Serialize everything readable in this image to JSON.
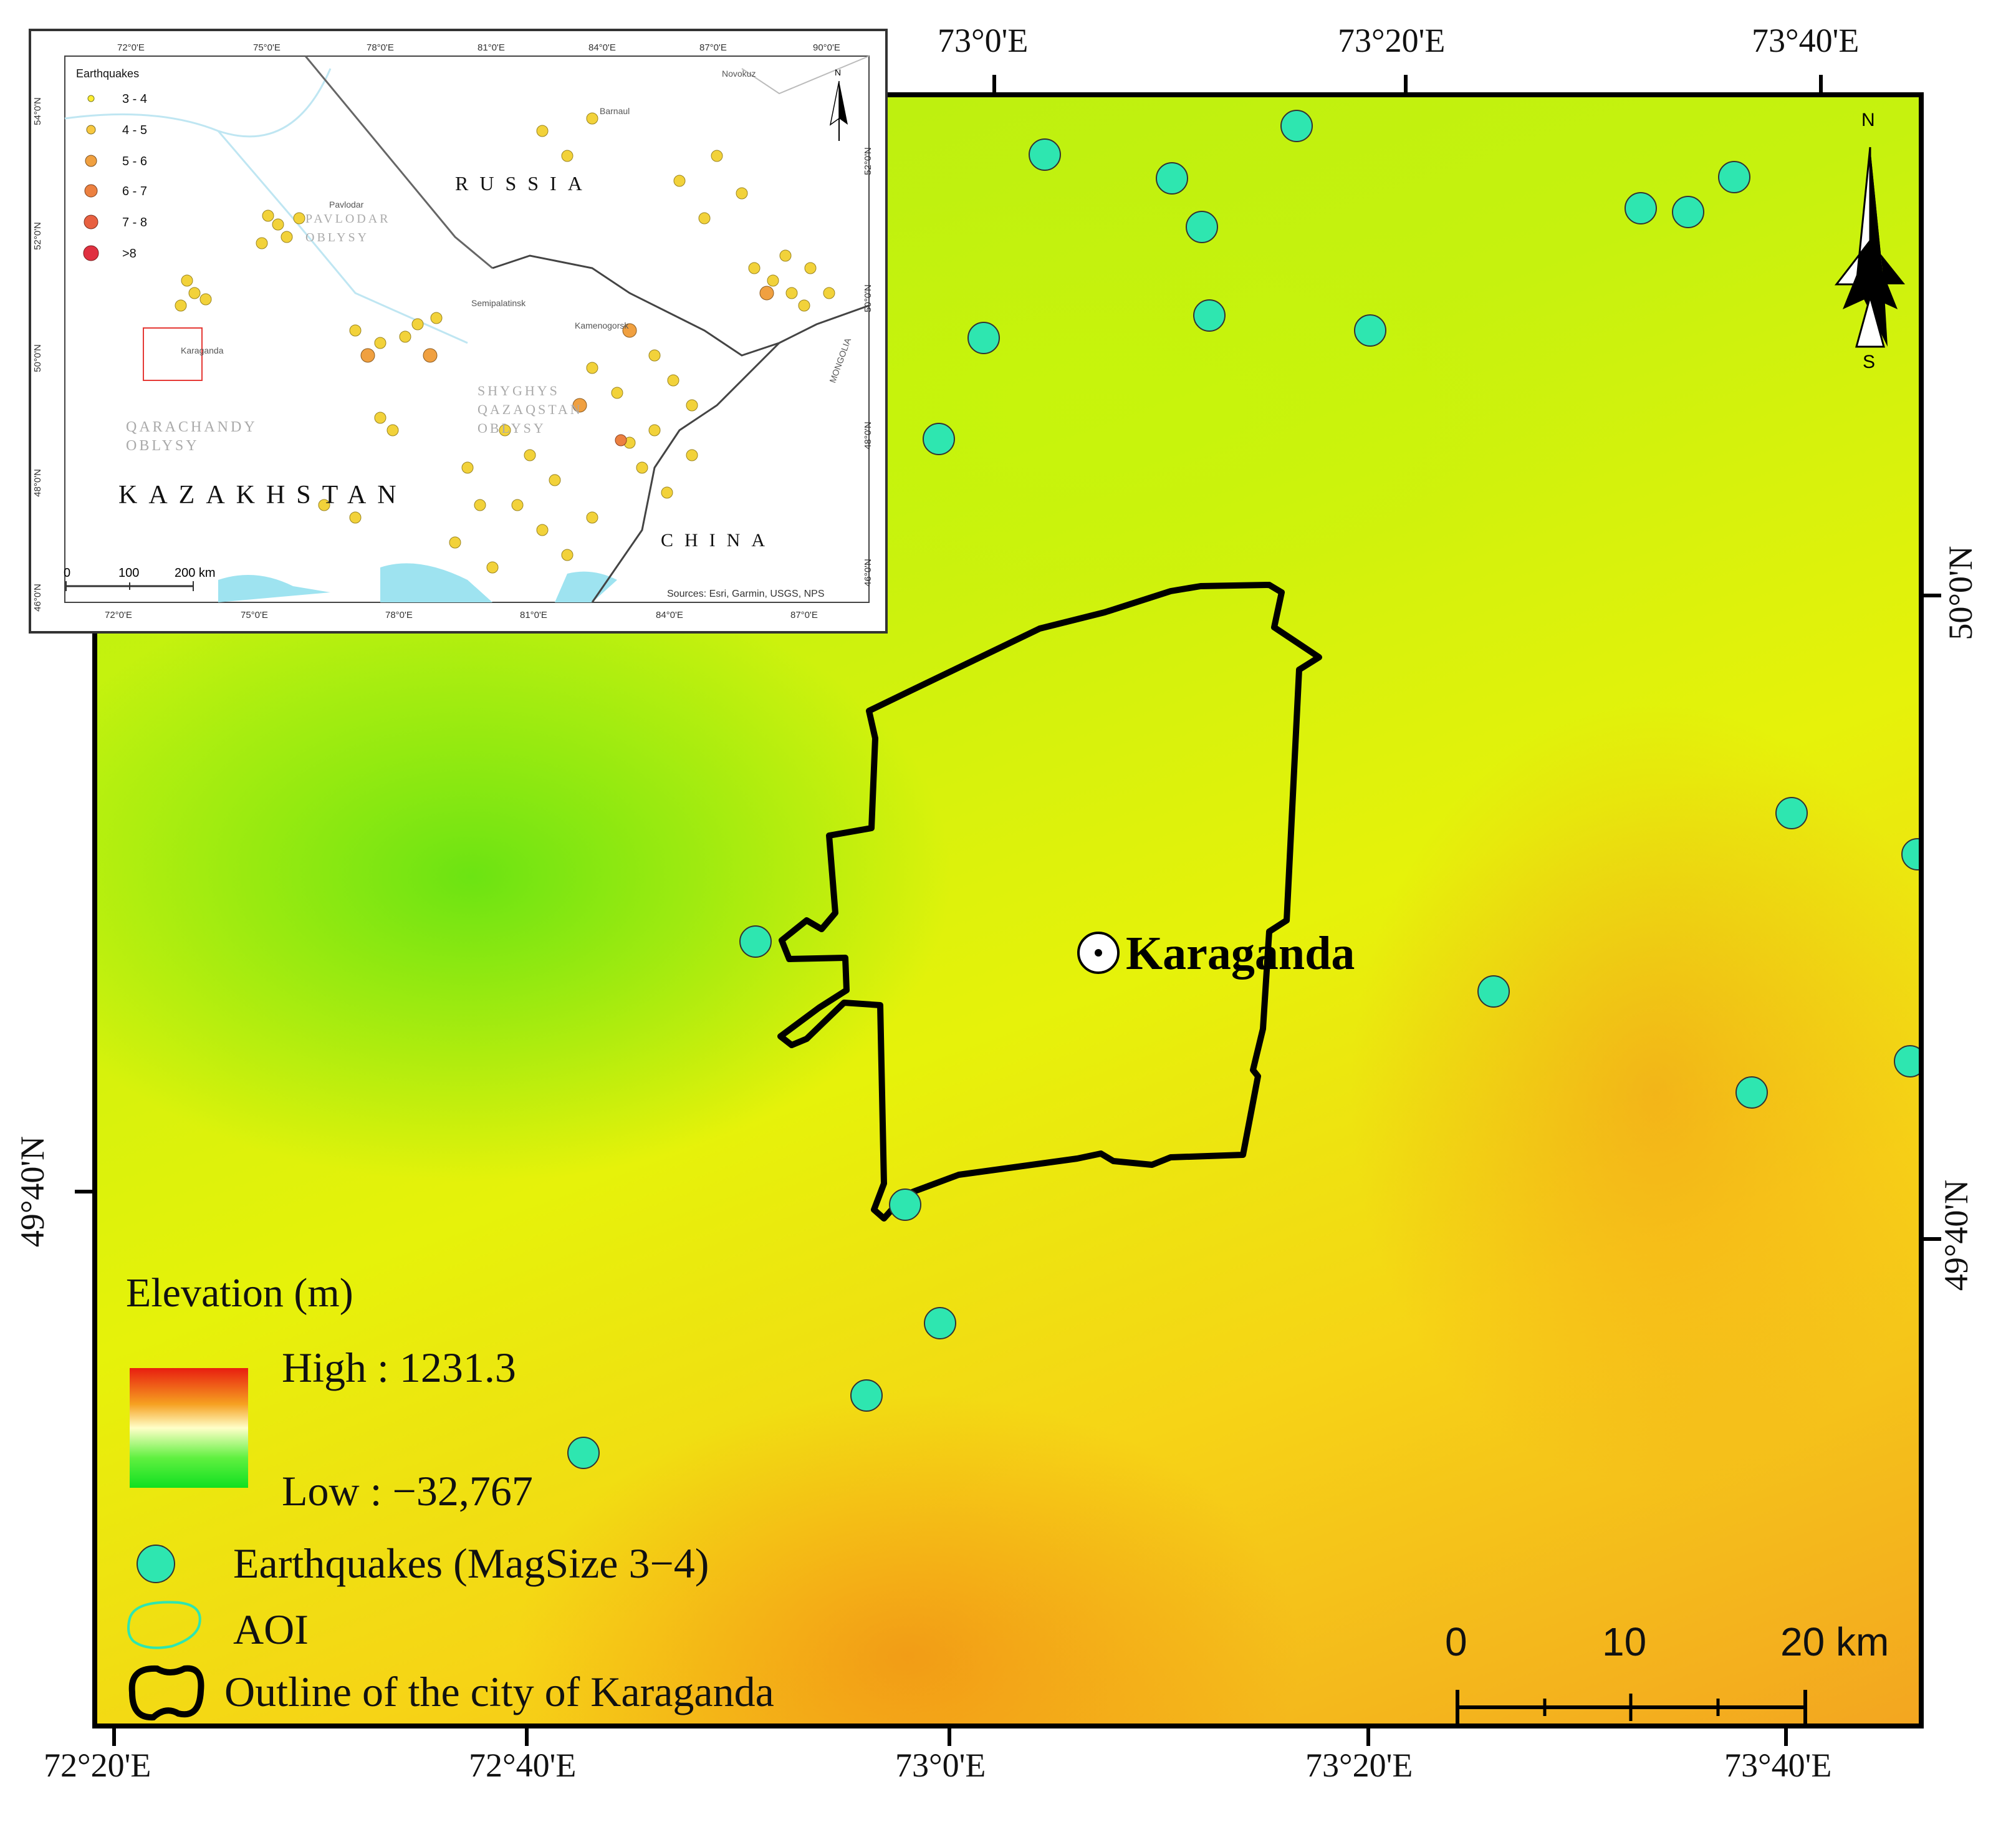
{
  "main_map": {
    "lon_labels_top": [
      "73°0'E",
      "73°20'E",
      "73°40'E"
    ],
    "lon_labels_bottom": [
      "72°20'E",
      "72°40'E",
      "73°0'E",
      "73°20'E",
      "73°40'E"
    ],
    "lat_labels_right": [
      "50°0'N",
      "49°40'N"
    ],
    "lat_labels_left": [
      "49°40'N"
    ],
    "city_label": "Karaganda"
  },
  "north_arrow": {
    "n_label": "N",
    "s_label": "S"
  },
  "legend": {
    "elevation_title": "Elevation (m)",
    "high_label": "High : 1231.3",
    "low_label": "Low : −32,767",
    "earthquakes_label": "Earthquakes (MagSize 3−4)",
    "aoi_label": "AOI",
    "outline_label": "Outline of the city of Karaganda",
    "earthquake_color": "#2ee6b0",
    "ramp_colors": [
      "#e81e10",
      "#f6a020",
      "#ffffc8",
      "#60f040",
      "#10e020"
    ]
  },
  "scale_bar": {
    "labels": [
      "0",
      "10",
      "20 km"
    ]
  },
  "inset": {
    "legend_title": "Earthquakes",
    "legend_items": [
      {
        "label": "3 - 4",
        "color": "#ffee30"
      },
      {
        "label": "4 - 5",
        "color": "#f8c840"
      },
      {
        "label": "5 - 6",
        "color": "#f0a040"
      },
      {
        "label": "6 - 7",
        "color": "#ec8040"
      },
      {
        "label": "7 - 8",
        "color": "#e86040"
      },
      {
        "label": ">8",
        "color": "#e03040"
      }
    ],
    "lon_labels": [
      "72°0'E",
      "75°0'E",
      "78°0'E",
      "81°0'E",
      "84°0'E",
      "87°0'E",
      "90°0'E"
    ],
    "lat_labels_left": [
      "54°0'N",
      "52°0'N",
      "50°0'N",
      "48°0'N",
      "46°0'N"
    ],
    "lat_labels_right": [
      "52°0'N",
      "50°0'N",
      "48°0'N",
      "46°0'N"
    ],
    "country_labels": [
      "RUSSIA",
      "KAZAKHSTAN",
      "CHINA"
    ],
    "region_labels": [
      "QARACHANDY\nOBLYSY",
      "SHYGHYS\nQAZAQSTAN\nOBLYSY",
      "PAVLODAR\nOBLYSY"
    ],
    "city_labels": [
      "Karaganda",
      "Pavlodar",
      "Barnaul",
      "Kamenogorsk",
      "Semipalatinsk",
      "Novokuz",
      "MONGOLIA"
    ],
    "scale_labels": [
      "0",
      "100",
      "200 km"
    ],
    "sources": "Sources: Esri, Garmin, USGS, NPS",
    "north_label": "N"
  }
}
